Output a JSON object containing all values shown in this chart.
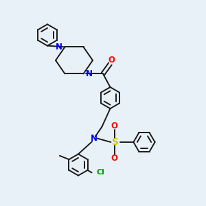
{
  "bg_color": "#e8f0f8",
  "bond_color": "#1a1a1a",
  "N_color": "#0000ff",
  "O_color": "#ff0000",
  "S_color": "#cccc00",
  "Cl_color": "#009900",
  "figsize": [
    3.0,
    3.0
  ],
  "dpi": 100,
  "xlim": [
    0,
    10
  ],
  "ylim": [
    0,
    10
  ]
}
